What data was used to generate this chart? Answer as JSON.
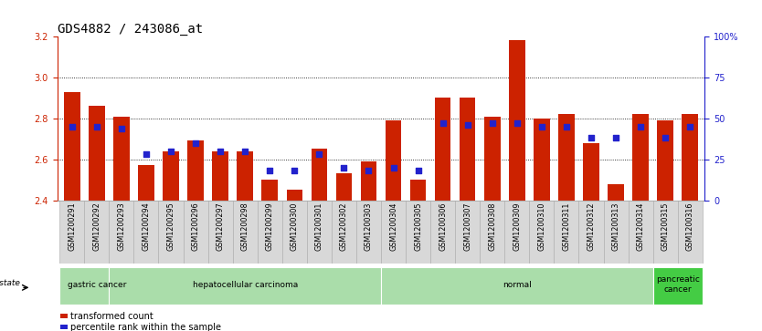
{
  "title": "GDS4882 / 243086_at",
  "samples": [
    "GSM1200291",
    "GSM1200292",
    "GSM1200293",
    "GSM1200294",
    "GSM1200295",
    "GSM1200296",
    "GSM1200297",
    "GSM1200298",
    "GSM1200299",
    "GSM1200300",
    "GSM1200301",
    "GSM1200302",
    "GSM1200303",
    "GSM1200304",
    "GSM1200305",
    "GSM1200306",
    "GSM1200307",
    "GSM1200308",
    "GSM1200309",
    "GSM1200310",
    "GSM1200311",
    "GSM1200312",
    "GSM1200313",
    "GSM1200314",
    "GSM1200315",
    "GSM1200316"
  ],
  "transformed_count": [
    2.93,
    2.86,
    2.81,
    2.57,
    2.64,
    2.69,
    2.64,
    2.64,
    2.5,
    2.45,
    2.65,
    2.53,
    2.59,
    2.79,
    2.5,
    2.9,
    2.9,
    2.81,
    3.18,
    2.8,
    2.82,
    2.68,
    2.48,
    2.82,
    2.79,
    2.82
  ],
  "percentile_values": [
    45,
    45,
    44,
    28,
    30,
    35,
    30,
    30,
    18,
    18,
    28,
    20,
    18,
    20,
    18,
    47,
    46,
    47,
    47,
    45,
    45,
    38,
    38,
    45,
    38,
    45
  ],
  "disease_groups": [
    {
      "label": "gastric cancer",
      "start": 0,
      "end": 2
    },
    {
      "label": "hepatocellular carcinoma",
      "start": 2,
      "end": 12
    },
    {
      "label": "normal",
      "start": 13,
      "end": 23
    },
    {
      "label": "pancreatic\ncancer",
      "start": 24,
      "end": 25
    }
  ],
  "bar_color": "#cc2200",
  "dot_color": "#2222cc",
  "ylim_left": [
    2.4,
    3.2
  ],
  "ylim_right": [
    0,
    100
  ],
  "yticks_left": [
    2.4,
    2.6,
    2.8,
    3.0,
    3.2
  ],
  "yticks_right": [
    0,
    25,
    50,
    75,
    100
  ],
  "background_color": "#ffffff",
  "plot_bg": "#ffffff",
  "title_fontsize": 10,
  "tick_fontsize": 7,
  "xtick_fontsize": 5.8,
  "label_fontsize": 7.5,
  "group_green_light": "#90ee90",
  "group_green_dark": "#44bb44",
  "xtick_bg": "#d8d8d8",
  "xtick_border": "#aaaaaa"
}
